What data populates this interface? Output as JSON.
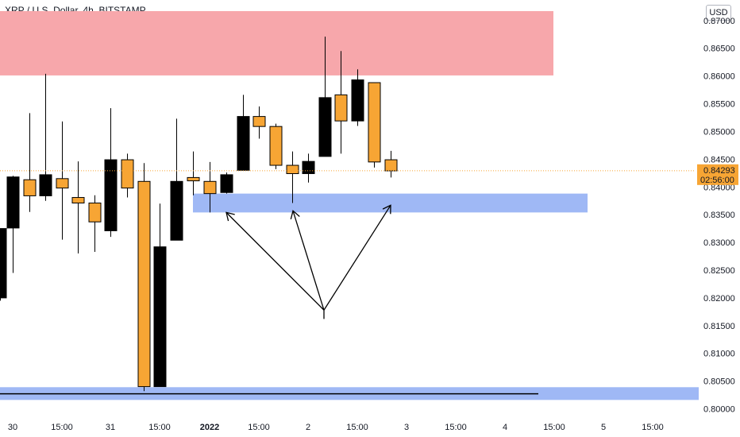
{
  "header": {
    "title": "XRP / U.S. Dollar, 4h, BITSTAMP"
  },
  "scale": {
    "currency_label": "USD"
  },
  "chart_data": {
    "type": "candlestick",
    "y_ticks": [
      "0.87000",
      "0.86500",
      "0.86000",
      "0.85500",
      "0.85000",
      "0.84500",
      "0.84000",
      "0.83500",
      "0.83000",
      "0.82500",
      "0.82000",
      "0.81500",
      "0.81000",
      "0.80500",
      "0.80000"
    ],
    "ylim": [
      0.7985,
      0.8737
    ],
    "x_ticks": [
      "30",
      "15:00",
      "31",
      "15:00",
      "2022",
      "15:00",
      "2",
      "15:00",
      "3",
      "15:00",
      "4",
      "15:00",
      "5",
      "15:00"
    ],
    "last_price": {
      "value": "0.84293",
      "countdown": "02:56:00"
    },
    "colors": {
      "up": "#f7a534",
      "down": "#000000",
      "resistance_zone": "#f7a7ab",
      "support_zone": "#9fb8f5",
      "price_line": "#f7a534"
    },
    "zones": [
      {
        "type": "resistance",
        "y_low": 0.8601,
        "y_high": 0.8717,
        "x_start": 0,
        "x_end": 697
      },
      {
        "type": "support",
        "y_low": 0.8354,
        "y_high": 0.8388,
        "x_start": 243,
        "x_end": 740
      },
      {
        "type": "support",
        "y_low": 0.8016,
        "y_high": 0.8039,
        "x_start": 0,
        "x_end": 880
      }
    ],
    "horizontal_lines": [
      {
        "y": 0.8027,
        "x_start": 0,
        "x_end": 678,
        "color": "#000000"
      }
    ],
    "candles": [
      {
        "x": 0,
        "o": 0.82,
        "c": 0.8325,
        "h": 0.8325,
        "l": 0.8195,
        "color": "down"
      },
      {
        "x": 16,
        "o": 0.8326,
        "c": 0.8418,
        "h": 0.842,
        "l": 0.8245,
        "color": "down"
      },
      {
        "x": 37,
        "o": 0.8384,
        "c": 0.8413,
        "h": 0.8533,
        "l": 0.8355,
        "color": "up"
      },
      {
        "x": 57,
        "o": 0.8384,
        "c": 0.8422,
        "h": 0.8604,
        "l": 0.8375,
        "color": "down"
      },
      {
        "x": 78,
        "o": 0.8415,
        "c": 0.8398,
        "h": 0.8518,
        "l": 0.8305,
        "color": "up"
      },
      {
        "x": 98,
        "o": 0.8381,
        "c": 0.8371,
        "h": 0.8446,
        "l": 0.828,
        "color": "up"
      },
      {
        "x": 119,
        "o": 0.8371,
        "c": 0.8337,
        "h": 0.8385,
        "l": 0.8283,
        "color": "up"
      },
      {
        "x": 139,
        "o": 0.8321,
        "c": 0.8449,
        "h": 0.8542,
        "l": 0.831,
        "color": "down"
      },
      {
        "x": 160,
        "o": 0.8449,
        "c": 0.8398,
        "h": 0.846,
        "l": 0.8381,
        "color": "up"
      },
      {
        "x": 181,
        "o": 0.841,
        "c": 0.804,
        "h": 0.8443,
        "l": 0.8032,
        "color": "up"
      },
      {
        "x": 201,
        "o": 0.804,
        "c": 0.8292,
        "h": 0.837,
        "l": 0.804,
        "color": "down"
      },
      {
        "x": 222,
        "o": 0.8304,
        "c": 0.841,
        "h": 0.8523,
        "l": 0.8304,
        "color": "down"
      },
      {
        "x": 243,
        "o": 0.8417,
        "c": 0.8411,
        "h": 0.8464,
        "l": 0.8385,
        "color": "up"
      },
      {
        "x": 264,
        "o": 0.841,
        "c": 0.8388,
        "h": 0.8445,
        "l": 0.8354,
        "color": "up"
      },
      {
        "x": 285,
        "o": 0.839,
        "c": 0.8422,
        "h": 0.8426,
        "l": 0.8388,
        "color": "down"
      },
      {
        "x": 306,
        "o": 0.843,
        "c": 0.8527,
        "h": 0.8566,
        "l": 0.843,
        "color": "down"
      },
      {
        "x": 326,
        "o": 0.8527,
        "c": 0.8509,
        "h": 0.8545,
        "l": 0.8487,
        "color": "up"
      },
      {
        "x": 347,
        "o": 0.8509,
        "c": 0.8439,
        "h": 0.8514,
        "l": 0.8432,
        "color": "up"
      },
      {
        "x": 368,
        "o": 0.8439,
        "c": 0.8424,
        "h": 0.8464,
        "l": 0.8371,
        "color": "up"
      },
      {
        "x": 388,
        "o": 0.8424,
        "c": 0.8446,
        "h": 0.846,
        "l": 0.8408,
        "color": "down"
      },
      {
        "x": 409,
        "o": 0.8455,
        "c": 0.8561,
        "h": 0.8671,
        "l": 0.8455,
        "color": "down"
      },
      {
        "x": 429,
        "o": 0.8519,
        "c": 0.8566,
        "h": 0.8645,
        "l": 0.846,
        "color": "up"
      },
      {
        "x": 450,
        "o": 0.8519,
        "c": 0.8593,
        "h": 0.8612,
        "l": 0.851,
        "color": "down"
      },
      {
        "x": 471,
        "o": 0.8588,
        "c": 0.8445,
        "h": 0.8588,
        "l": 0.8435,
        "color": "up"
      },
      {
        "x": 492,
        "o": 0.8449,
        "c": 0.8429,
        "h": 0.8465,
        "l": 0.8417,
        "color": "up"
      }
    ],
    "annotation_arrows": {
      "origin": {
        "x": 408,
        "y": 0.8178
      },
      "targets": [
        {
          "x": 285,
          "y": 0.8354
        },
        {
          "x": 369,
          "y": 0.8357
        },
        {
          "x": 492,
          "y": 0.8367
        }
      ],
      "extra_tail": {
        "x": 408,
        "y": 0.8162
      }
    }
  }
}
